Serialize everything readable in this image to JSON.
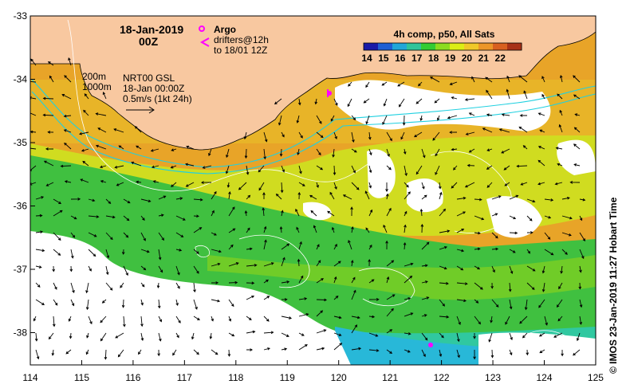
{
  "map": {
    "date_label": "18-Jan-2019",
    "hour_label": "00Z",
    "argo_label": "Argo",
    "drifters_line1": "drifters@12h",
    "drifters_line2": "to 18/01 12Z",
    "isobath_200": "200m",
    "isobath_1000": "1000m",
    "product_line1": "NRT00 GSL",
    "product_line2": "18-Jan 00:00Z",
    "product_line3": "0.5m/s (1kt 24h)",
    "credit": "© IMOS 23-Jan-2019 11:27 Hobart Time",
    "colorbar": {
      "title": "4h comp, p50, All Sats",
      "ticks": [
        "14",
        "15",
        "16",
        "17",
        "18",
        "19",
        "20",
        "21",
        "22"
      ],
      "colors": [
        "#1a1aa8",
        "#1f5fd4",
        "#22a6d8",
        "#2fc49a",
        "#33cc33",
        "#8cdc1e",
        "#dcee14",
        "#f0c828",
        "#ec9628",
        "#d86020",
        "#a83218"
      ]
    },
    "y_axis_ticks": [
      "-33",
      "-34",
      "-35",
      "-36",
      "-37",
      "-38"
    ],
    "x_axis_ticks": [
      "114",
      "115",
      "116",
      "117",
      "118",
      "119",
      "120",
      "121",
      "122",
      "123",
      "124",
      "125"
    ],
    "colors": {
      "land": "#f8c8a0",
      "isobath": "#20d0e0",
      "contour": "#ffffff",
      "argo": "#ff00ff",
      "drifter": "#ff00ff"
    }
  }
}
